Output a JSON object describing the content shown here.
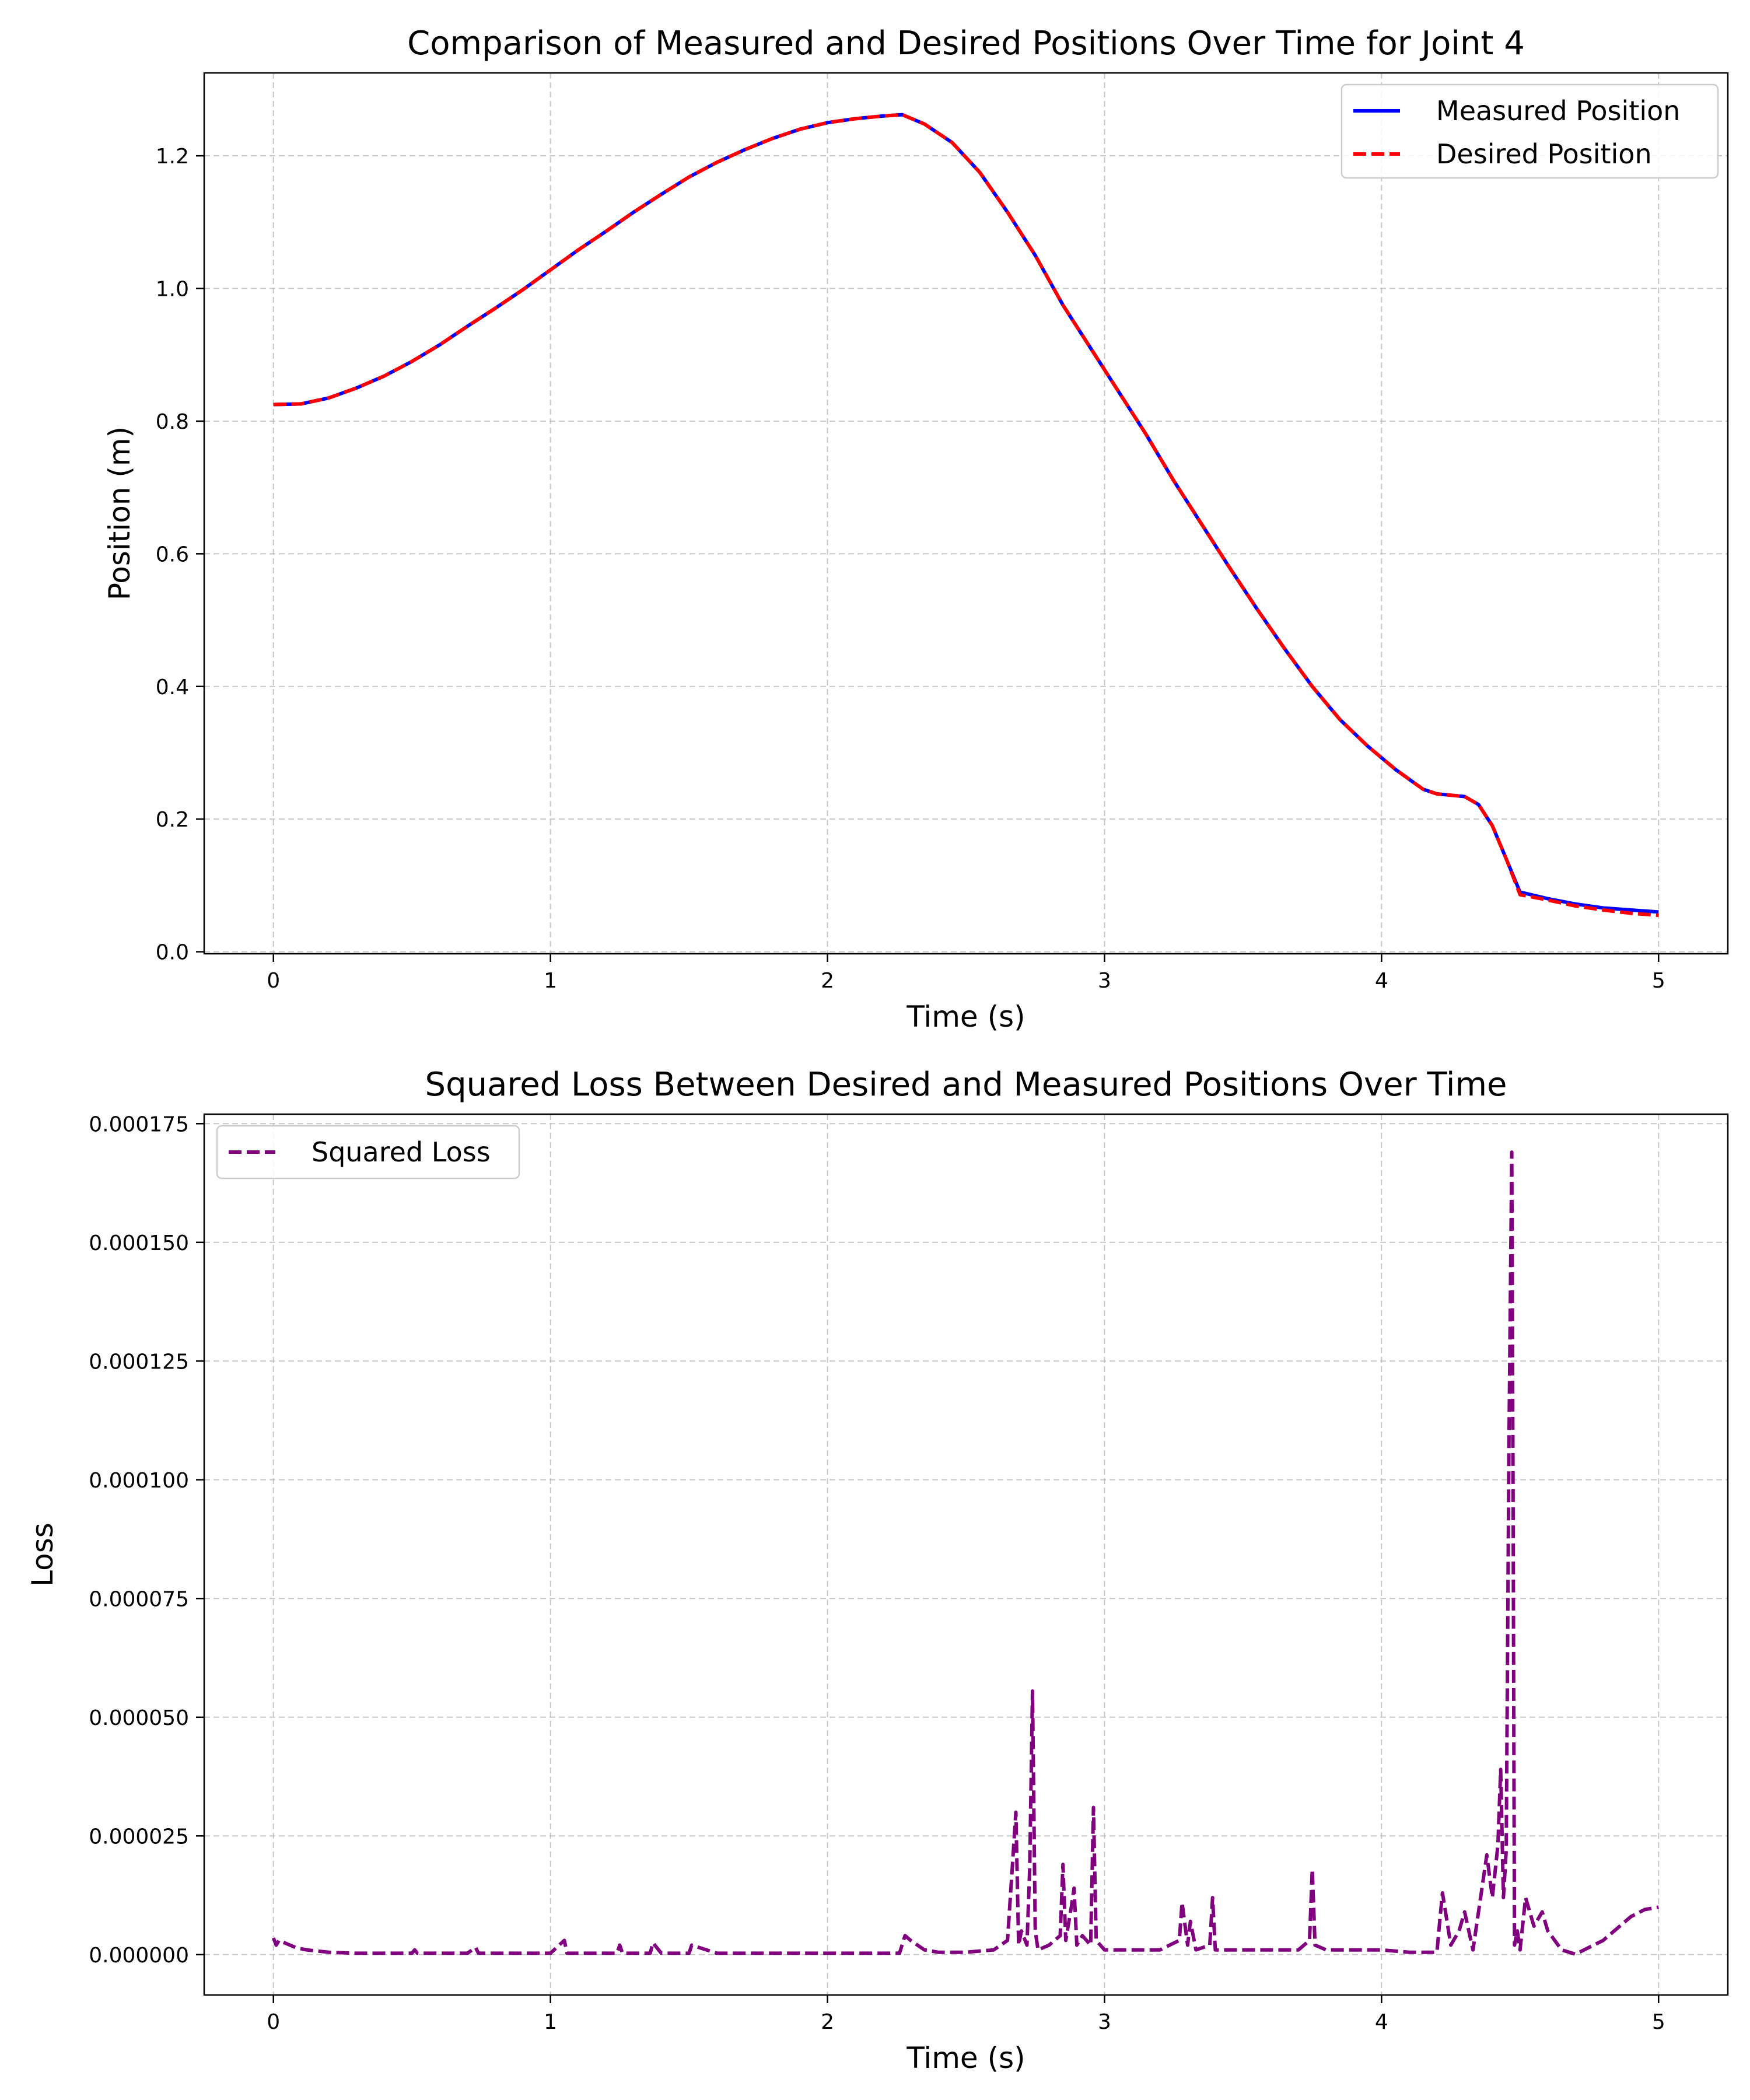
{
  "chart_data": [
    {
      "type": "line",
      "title": "Comparison of Measured and Desired Positions Over Time for Joint 4",
      "xlabel": "Time (s)",
      "ylabel": "Position (m)",
      "xlim": [
        -0.25,
        5.25
      ],
      "ylim": [
        -0.003,
        1.325
      ],
      "xticks": [
        0,
        1,
        2,
        3,
        4,
        5
      ],
      "xtick_labels": [
        "0",
        "1",
        "2",
        "3",
        "4",
        "5"
      ],
      "yticks": [
        0.0,
        0.2,
        0.4,
        0.6,
        0.8,
        1.0,
        1.2
      ],
      "ytick_labels": [
        "0.0",
        "0.2",
        "0.4",
        "0.6",
        "0.8",
        "1.0",
        "1.2"
      ],
      "grid": true,
      "legend_position": "top-right",
      "series": [
        {
          "name": "Measured Position",
          "color": "#0000ff",
          "style": "solid",
          "x": [
            0.0,
            0.1,
            0.2,
            0.3,
            0.4,
            0.5,
            0.6,
            0.7,
            0.8,
            0.9,
            1.0,
            1.1,
            1.2,
            1.3,
            1.4,
            1.5,
            1.6,
            1.7,
            1.8,
            1.9,
            2.0,
            2.1,
            2.2,
            2.27,
            2.35,
            2.45,
            2.55,
            2.65,
            2.75,
            2.85,
            2.95,
            3.05,
            3.15,
            3.25,
            3.35,
            3.45,
            3.55,
            3.65,
            3.75,
            3.85,
            3.95,
            4.05,
            4.15,
            4.2,
            4.25,
            4.3,
            4.35,
            4.4,
            4.45,
            4.5,
            4.6,
            4.7,
            4.8,
            4.9,
            5.0
          ],
          "y": [
            0.825,
            0.826,
            0.835,
            0.85,
            0.868,
            0.89,
            0.915,
            0.943,
            0.97,
            0.998,
            1.028,
            1.058,
            1.086,
            1.115,
            1.142,
            1.168,
            1.19,
            1.209,
            1.226,
            1.24,
            1.25,
            1.256,
            1.26,
            1.262,
            1.248,
            1.22,
            1.175,
            1.115,
            1.05,
            0.975,
            0.91,
            0.845,
            0.78,
            0.71,
            0.645,
            0.58,
            0.517,
            0.457,
            0.4,
            0.35,
            0.31,
            0.275,
            0.245,
            0.238,
            0.236,
            0.234,
            0.222,
            0.19,
            0.14,
            0.09,
            0.08,
            0.072,
            0.066,
            0.063,
            0.06
          ]
        },
        {
          "name": "Desired Position",
          "color": "#ff0000",
          "style": "dashed",
          "x": [
            0.0,
            0.1,
            0.2,
            0.3,
            0.4,
            0.5,
            0.6,
            0.7,
            0.8,
            0.9,
            1.0,
            1.1,
            1.2,
            1.3,
            1.4,
            1.5,
            1.6,
            1.7,
            1.8,
            1.9,
            2.0,
            2.1,
            2.2,
            2.27,
            2.35,
            2.45,
            2.55,
            2.65,
            2.75,
            2.85,
            2.95,
            3.05,
            3.15,
            3.25,
            3.35,
            3.45,
            3.55,
            3.65,
            3.75,
            3.85,
            3.95,
            4.05,
            4.15,
            4.2,
            4.25,
            4.3,
            4.35,
            4.4,
            4.45,
            4.5,
            4.6,
            4.7,
            4.8,
            4.9,
            5.0
          ],
          "y": [
            0.825,
            0.826,
            0.835,
            0.85,
            0.868,
            0.89,
            0.915,
            0.943,
            0.97,
            0.998,
            1.028,
            1.058,
            1.086,
            1.115,
            1.142,
            1.168,
            1.19,
            1.209,
            1.226,
            1.24,
            1.25,
            1.256,
            1.26,
            1.262,
            1.248,
            1.22,
            1.175,
            1.115,
            1.05,
            0.975,
            0.91,
            0.845,
            0.78,
            0.71,
            0.645,
            0.58,
            0.517,
            0.457,
            0.4,
            0.35,
            0.31,
            0.275,
            0.245,
            0.238,
            0.236,
            0.234,
            0.222,
            0.19,
            0.14,
            0.086,
            0.078,
            0.069,
            0.063,
            0.058,
            0.055
          ]
        }
      ]
    },
    {
      "type": "line",
      "title": "Squared Loss Between Desired and Measured Positions Over Time",
      "xlabel": "Time (s)",
      "ylabel": "Loss",
      "xlim": [
        -0.25,
        5.25
      ],
      "ylim": [
        -8.5e-06,
        0.000177
      ],
      "xticks": [
        0,
        1,
        2,
        3,
        4,
        5
      ],
      "xtick_labels": [
        "0",
        "1",
        "2",
        "3",
        "4",
        "5"
      ],
      "yticks": [
        0.0,
        2.5e-05,
        5e-05,
        7.5e-05,
        0.0001,
        0.000125,
        0.00015,
        0.000175
      ],
      "ytick_labels": [
        "0.000000",
        "0.000025",
        "0.000050",
        "0.000075",
        "0.000100",
        "0.000125",
        "0.000150",
        "0.000175"
      ],
      "grid": true,
      "legend_position": "top-left",
      "series": [
        {
          "name": "Squared Loss",
          "color": "#800080",
          "style": "dashed",
          "x": [
            0.0,
            0.01,
            0.02,
            0.04,
            0.06,
            0.08,
            0.12,
            0.2,
            0.3,
            0.4,
            0.5,
            0.51,
            0.52,
            0.6,
            0.7,
            0.73,
            0.74,
            0.8,
            0.9,
            1.0,
            1.05,
            1.06,
            1.1,
            1.24,
            1.25,
            1.26,
            1.3,
            1.36,
            1.37,
            1.4,
            1.5,
            1.51,
            1.6,
            1.8,
            2.0,
            2.2,
            2.26,
            2.28,
            2.3,
            2.35,
            2.4,
            2.5,
            2.6,
            2.65,
            2.68,
            2.69,
            2.7,
            2.72,
            2.73,
            2.74,
            2.75,
            2.76,
            2.8,
            2.84,
            2.85,
            2.86,
            2.88,
            2.89,
            2.9,
            2.92,
            2.95,
            2.96,
            2.97,
            3.0,
            3.1,
            3.2,
            3.27,
            3.28,
            3.3,
            3.31,
            3.33,
            3.38,
            3.39,
            3.4,
            3.5,
            3.6,
            3.7,
            3.74,
            3.75,
            3.76,
            3.8,
            3.9,
            4.0,
            4.1,
            4.2,
            4.21,
            4.22,
            4.25,
            4.28,
            4.3,
            4.33,
            4.35,
            4.38,
            4.4,
            4.42,
            4.43,
            4.44,
            4.45,
            4.46,
            4.47,
            4.475,
            4.48,
            4.49,
            4.5,
            4.52,
            4.55,
            4.58,
            4.6,
            4.65,
            4.7,
            4.8,
            4.9,
            4.95,
            5.0
          ],
          "y": [
            3.5e-06,
            2e-06,
            3e-06,
            2.5e-06,
            2e-06,
            1.5e-06,
            1e-06,
            5e-07,
            3e-07,
            3e-07,
            3e-07,
            1e-06,
            3e-07,
            3e-07,
            3e-07,
            1.5e-06,
            3e-07,
            3e-07,
            3e-07,
            3e-07,
            3e-06,
            3e-07,
            3e-07,
            3e-07,
            2e-06,
            3e-07,
            3e-07,
            3e-07,
            2.5e-06,
            3e-07,
            3e-07,
            2e-06,
            3e-07,
            3e-07,
            3e-07,
            3e-07,
            3e-07,
            4e-06,
            3e-06,
            1e-06,
            5e-07,
            5e-07,
            1e-06,
            3e-06,
            3e-05,
            2e-06,
            5e-06,
            2e-06,
            1.8e-05,
            5.55e-05,
            5e-06,
            1e-06,
            2e-06,
            4e-06,
            1.9e-05,
            3e-06,
            1e-05,
            1.4e-05,
            2e-06,
            4e-06,
            2e-06,
            3.1e-05,
            3e-06,
            1e-06,
            1e-06,
            1e-06,
            3e-06,
            1.1e-05,
            2e-06,
            7e-06,
            1e-06,
            2e-06,
            1.2e-05,
            1e-06,
            1e-06,
            1e-06,
            1e-06,
            3e-06,
            1.8e-05,
            2e-06,
            1e-06,
            1e-06,
            1e-06,
            5e-07,
            5e-07,
            7e-06,
            1.3e-05,
            2e-06,
            5e-06,
            9e-06,
            1e-06,
            9e-06,
            2.1e-05,
            1.2e-05,
            2.3e-05,
            3.9e-05,
            1.2e-05,
            2.2e-05,
            0.000108,
            0.000169,
            9.5e-05,
            2e-06,
            5e-06,
            1e-06,
            1.2e-05,
            6e-06,
            9e-06,
            5e-06,
            1e-06,
            1e-07,
            3e-06,
            8e-06,
            9.5e-06,
            1e-05
          ]
        }
      ]
    }
  ]
}
